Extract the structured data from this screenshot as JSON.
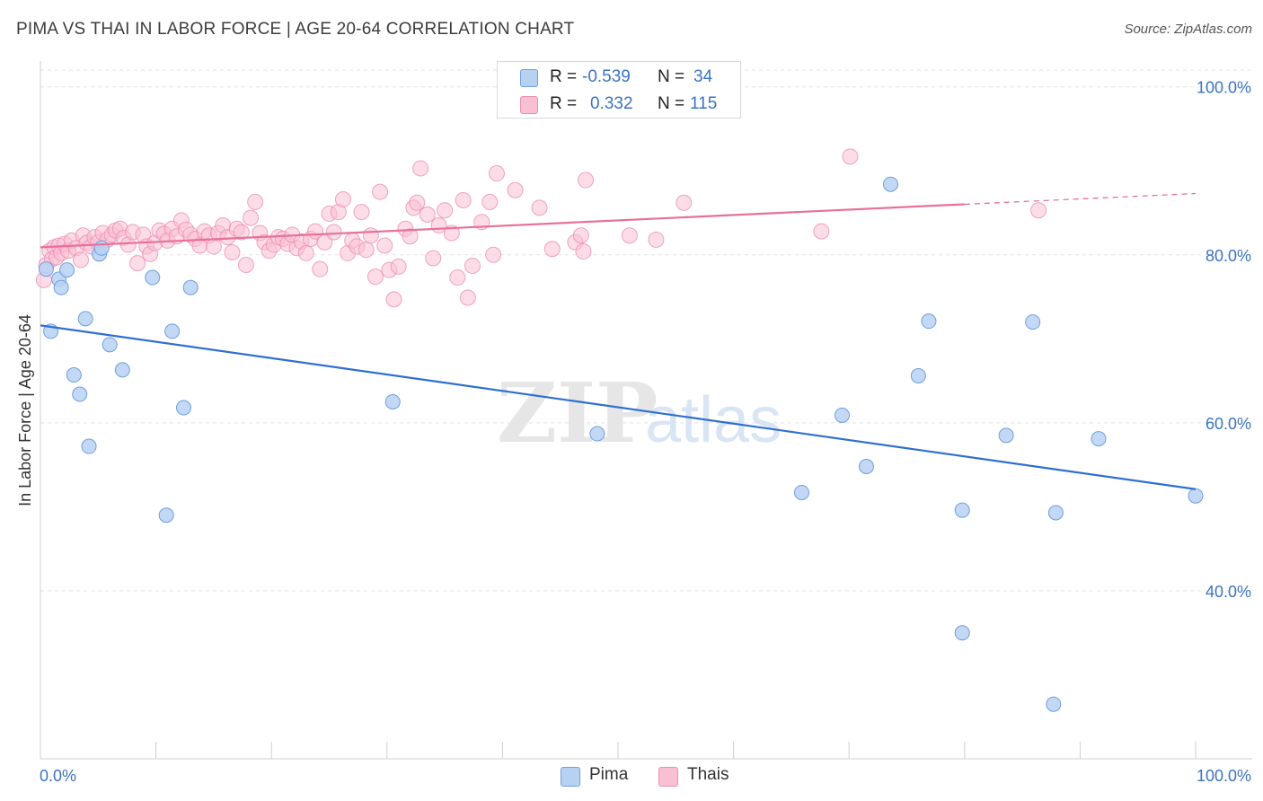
{
  "header": {
    "title": "PIMA VS THAI IN LABOR FORCE | AGE 20-64 CORRELATION CHART",
    "source": "Source: ZipAtlas.com"
  },
  "watermark": {
    "zip": "ZIP",
    "atlas": "atlas"
  },
  "legend_top": {
    "rows": [
      {
        "r_label": "R =",
        "r_value": "-0.539",
        "n_label": "N =",
        "n_value": "34"
      },
      {
        "r_label": "R =",
        "r_value": "0.332",
        "n_label": "N =",
        "n_value": "115"
      }
    ]
  },
  "legend_bottom": {
    "pima": "Pima",
    "thais": "Thais"
  },
  "colors": {
    "pima_fill": "#b7d1f2",
    "pima_stroke": "#6f9fde",
    "pima_line": "#2e6fd0",
    "thai_fill": "#f9c0d3",
    "thai_stroke": "#ec8fb0",
    "thai_line": "#e8709a",
    "axis_label_blue": "#3a73c4"
  },
  "chart_data": {
    "type": "scatter",
    "title": "PIMA VS THAI IN LABOR FORCE | AGE 20-64 CORRELATION CHART",
    "xlabel": "",
    "ylabel": "In Labor Force | Age 20-64",
    "xlim": [
      0,
      100
    ],
    "ylim": [
      20,
      102
    ],
    "x_tick_labels": [
      "0.0%",
      "100.0%"
    ],
    "y_ticks": [
      40,
      60,
      80,
      100
    ],
    "y_tick_labels": [
      "40.0%",
      "60.0%",
      "80.0%",
      "100.0%"
    ],
    "grid": true,
    "legend_position": "top-center",
    "series": [
      {
        "name": "Pima",
        "r": -0.539,
        "n": 34,
        "trend": {
          "x": [
            0,
            100
          ],
          "y": [
            71.6,
            52.1
          ],
          "dashed_from": null
        },
        "points": [
          [
            0.5,
            78.3
          ],
          [
            0.9,
            70.9
          ],
          [
            1.6,
            77.1
          ],
          [
            1.8,
            76.1
          ],
          [
            2.3,
            78.2
          ],
          [
            2.9,
            65.7
          ],
          [
            3.4,
            63.4
          ],
          [
            3.9,
            72.4
          ],
          [
            4.2,
            57.2
          ],
          [
            5.1,
            80.1
          ],
          [
            5.3,
            80.8
          ],
          [
            6.0,
            69.3
          ],
          [
            7.1,
            66.3
          ],
          [
            9.7,
            77.3
          ],
          [
            10.9,
            49.0
          ],
          [
            11.4,
            70.9
          ],
          [
            12.4,
            61.8
          ],
          [
            13.0,
            76.1
          ],
          [
            30.5,
            62.5
          ],
          [
            48.2,
            58.7
          ],
          [
            65.9,
            51.7
          ],
          [
            69.4,
            60.9
          ],
          [
            71.5,
            54.8
          ],
          [
            73.6,
            88.4
          ],
          [
            76.0,
            65.6
          ],
          [
            76.9,
            72.1
          ],
          [
            79.8,
            35.0
          ],
          [
            79.8,
            49.6
          ],
          [
            83.6,
            58.5
          ],
          [
            85.9,
            72.0
          ],
          [
            87.7,
            26.5
          ],
          [
            87.9,
            49.3
          ],
          [
            91.6,
            58.1
          ],
          [
            100.0,
            51.3
          ]
        ]
      },
      {
        "name": "Thais",
        "r": 0.332,
        "n": 115,
        "trend": {
          "x": [
            0,
            100
          ],
          "y": [
            80.9,
            87.3
          ],
          "dashed_from": 80
        },
        "points": [
          [
            0.3,
            77.0
          ],
          [
            0.5,
            78.8
          ],
          [
            0.8,
            80.5
          ],
          [
            1.0,
            79.5
          ],
          [
            1.2,
            80.9
          ],
          [
            1.4,
            79.7
          ],
          [
            1.6,
            81.1
          ],
          [
            1.8,
            80.2
          ],
          [
            2.1,
            81.3
          ],
          [
            2.4,
            80.5
          ],
          [
            2.7,
            81.7
          ],
          [
            3.1,
            80.8
          ],
          [
            3.5,
            79.4
          ],
          [
            3.7,
            82.3
          ],
          [
            4.0,
            81.4
          ],
          [
            4.4,
            81.0
          ],
          [
            4.7,
            82.1
          ],
          [
            5.0,
            81.5
          ],
          [
            5.4,
            82.6
          ],
          [
            5.8,
            81.8
          ],
          [
            6.2,
            82.4
          ],
          [
            6.5,
            82.9
          ],
          [
            6.9,
            83.1
          ],
          [
            7.2,
            82.0
          ],
          [
            7.6,
            81.2
          ],
          [
            8.0,
            82.7
          ],
          [
            8.4,
            79.0
          ],
          [
            8.9,
            82.4
          ],
          [
            9.2,
            81.0
          ],
          [
            9.5,
            80.1
          ],
          [
            9.9,
            81.4
          ],
          [
            10.3,
            82.9
          ],
          [
            10.7,
            82.5
          ],
          [
            11.0,
            81.7
          ],
          [
            11.4,
            83.1
          ],
          [
            11.8,
            82.2
          ],
          [
            12.2,
            84.1
          ],
          [
            12.6,
            83.0
          ],
          [
            13.0,
            82.4
          ],
          [
            13.4,
            81.9
          ],
          [
            13.8,
            81.1
          ],
          [
            14.2,
            82.8
          ],
          [
            14.6,
            82.3
          ],
          [
            15.0,
            81.0
          ],
          [
            15.4,
            82.6
          ],
          [
            15.8,
            83.5
          ],
          [
            16.2,
            82.1
          ],
          [
            16.6,
            80.3
          ],
          [
            17.0,
            83.1
          ],
          [
            17.4,
            82.7
          ],
          [
            17.8,
            78.8
          ],
          [
            18.2,
            84.4
          ],
          [
            18.6,
            86.3
          ],
          [
            19.0,
            82.6
          ],
          [
            19.4,
            81.5
          ],
          [
            19.8,
            80.5
          ],
          [
            20.2,
            81.2
          ],
          [
            20.6,
            82.1
          ],
          [
            21.0,
            81.9
          ],
          [
            21.4,
            81.3
          ],
          [
            21.8,
            82.4
          ],
          [
            22.2,
            80.8
          ],
          [
            22.6,
            81.6
          ],
          [
            23.0,
            80.2
          ],
          [
            23.4,
            81.9
          ],
          [
            23.8,
            82.8
          ],
          [
            24.2,
            78.3
          ],
          [
            24.6,
            81.5
          ],
          [
            25.0,
            84.9
          ],
          [
            25.4,
            82.7
          ],
          [
            25.8,
            85.1
          ],
          [
            26.2,
            86.6
          ],
          [
            26.6,
            80.2
          ],
          [
            27.0,
            81.7
          ],
          [
            27.4,
            81.0
          ],
          [
            27.8,
            85.1
          ],
          [
            28.2,
            80.6
          ],
          [
            28.6,
            82.3
          ],
          [
            29.0,
            77.4
          ],
          [
            29.4,
            87.5
          ],
          [
            29.8,
            81.1
          ],
          [
            30.2,
            78.2
          ],
          [
            30.6,
            74.7
          ],
          [
            31.0,
            78.6
          ],
          [
            31.6,
            83.1
          ],
          [
            32.0,
            82.2
          ],
          [
            32.3,
            85.6
          ],
          [
            32.6,
            86.2
          ],
          [
            32.9,
            90.3
          ],
          [
            33.5,
            84.8
          ],
          [
            34.0,
            79.6
          ],
          [
            34.5,
            83.5
          ],
          [
            35.0,
            85.3
          ],
          [
            35.6,
            82.6
          ],
          [
            36.1,
            77.3
          ],
          [
            36.6,
            86.5
          ],
          [
            37.0,
            74.9
          ],
          [
            37.4,
            78.7
          ],
          [
            38.2,
            83.9
          ],
          [
            38.9,
            86.3
          ],
          [
            39.2,
            80.0
          ],
          [
            39.5,
            89.7
          ],
          [
            41.1,
            87.7
          ],
          [
            43.2,
            85.6
          ],
          [
            44.3,
            80.7
          ],
          [
            46.3,
            81.5
          ],
          [
            46.8,
            82.3
          ],
          [
            47.0,
            80.4
          ],
          [
            47.2,
            88.9
          ],
          [
            51.0,
            82.3
          ],
          [
            53.3,
            81.8
          ],
          [
            55.7,
            86.2
          ],
          [
            67.6,
            82.8
          ],
          [
            70.1,
            91.7
          ],
          [
            86.4,
            85.3
          ]
        ]
      }
    ]
  }
}
